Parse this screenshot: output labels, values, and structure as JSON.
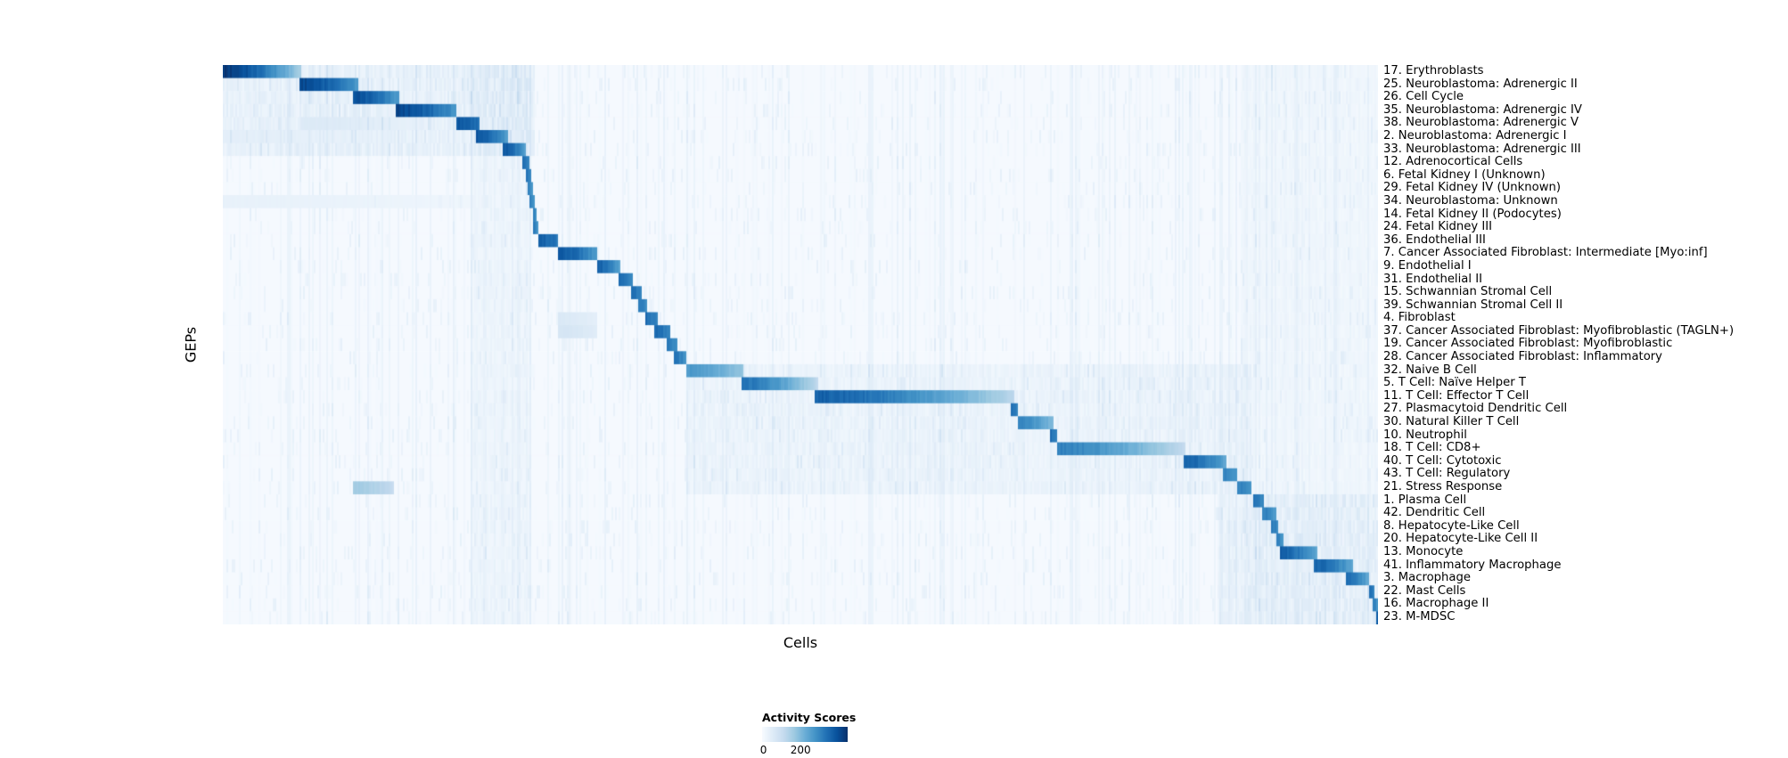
{
  "figure": {
    "y_axis_label": "GEPs",
    "x_axis_label": "Cells"
  },
  "legend": {
    "title": "Activity Scores",
    "min_label": "0",
    "max_label": "200"
  },
  "chart_data": {
    "type": "heatmap",
    "title": "",
    "xlabel": "Cells",
    "ylabel": "GEPs",
    "legend_title": "Activity Scores",
    "score_range": [
      0,
      200
    ],
    "colormap": "Blues",
    "colormap_stops": [
      "#f7fbff",
      "#deebf7",
      "#c6dbef",
      "#9ecae1",
      "#6baed6",
      "#4292c6",
      "#2171b5",
      "#08519c",
      "#08306b"
    ],
    "n_rows": 43,
    "layout": "block-diagonal staircase of GEP activity across ordered cells, blocks as [start_frac, end_frac, peak_intensity]",
    "rows": [
      {
        "label": "17. Erythroblasts",
        "blocks": [
          [
            0.0,
            0.067,
            1.0
          ]
        ]
      },
      {
        "label": "25. Neuroblastoma: Adrenergic II",
        "blocks": [
          [
            0.065,
            0.116,
            0.95
          ]
        ]
      },
      {
        "label": "26. Cell Cycle",
        "blocks": [
          [
            0.112,
            0.152,
            0.92
          ]
        ]
      },
      {
        "label": "35. Neuroblastoma: Adrenergic IV",
        "blocks": [
          [
            0.149,
            0.202,
            0.95
          ]
        ]
      },
      {
        "label": "38. Neuroblastoma: Adrenergic V",
        "blocks": [
          [
            0.067,
            0.2,
            0.14
          ],
          [
            0.202,
            0.222,
            0.9
          ]
        ]
      },
      {
        "label": "2. Neuroblastoma: Adrenergic I",
        "blocks": [
          [
            0.0,
            0.215,
            0.1
          ],
          [
            0.218,
            0.246,
            0.9
          ]
        ]
      },
      {
        "label": "33. Neuroblastoma: Adrenergic III",
        "blocks": [
          [
            0.242,
            0.262,
            0.88
          ]
        ]
      },
      {
        "label": "12. Adrenocortical Cells",
        "blocks": [
          [
            0.259,
            0.265,
            0.8
          ]
        ]
      },
      {
        "label": "6. Fetal Kidney I (Unknown)",
        "blocks": [
          [
            0.261,
            0.266,
            0.78
          ]
        ]
      },
      {
        "label": "29. Fetal Kidney IV (Unknown)",
        "blocks": [
          [
            0.263,
            0.268,
            0.72
          ]
        ]
      },
      {
        "label": "34. Neuroblastoma: Unknown",
        "blocks": [
          [
            0.0,
            0.26,
            0.08
          ],
          [
            0.265,
            0.27,
            0.72
          ]
        ]
      },
      {
        "label": "14. Fetal Kidney II (Podocytes)",
        "blocks": [
          [
            0.267,
            0.271,
            0.72
          ]
        ]
      },
      {
        "label": "24. Fetal Kidney III",
        "blocks": [
          [
            0.268,
            0.273,
            0.72
          ]
        ]
      },
      {
        "label": "36. Endothelial III",
        "blocks": [
          [
            0.272,
            0.29,
            0.86
          ]
        ]
      },
      {
        "label": "7. Cancer Associated Fibroblast: Intermediate [Myo:inf]",
        "blocks": [
          [
            0.289,
            0.324,
            0.9
          ]
        ]
      },
      {
        "label": "9. Endothelial I",
        "blocks": [
          [
            0.323,
            0.344,
            0.85
          ]
        ]
      },
      {
        "label": "31. Endothelial II",
        "blocks": [
          [
            0.342,
            0.354,
            0.8
          ]
        ]
      },
      {
        "label": "15. Schwannian Stromal Cell",
        "blocks": [
          [
            0.352,
            0.362,
            0.8
          ]
        ]
      },
      {
        "label": "39. Schwannian Stromal Cell II",
        "blocks": [
          [
            0.359,
            0.367,
            0.75
          ]
        ]
      },
      {
        "label": "4. Fibroblast",
        "blocks": [
          [
            0.289,
            0.324,
            0.15
          ],
          [
            0.365,
            0.376,
            0.8
          ]
        ]
      },
      {
        "label": "37. Cancer Associated Fibroblast: Myofibroblastic (TAGLN+)",
        "blocks": [
          [
            0.289,
            0.324,
            0.18
          ],
          [
            0.373,
            0.386,
            0.82
          ]
        ]
      },
      {
        "label": "19. Cancer Associated Fibroblast: Myofibroblastic",
        "blocks": [
          [
            0.383,
            0.393,
            0.76
          ]
        ]
      },
      {
        "label": "28. Cancer Associated Fibroblast: Inflammatory",
        "blocks": [
          [
            0.39,
            0.4,
            0.76
          ]
        ]
      },
      {
        "label": "32. Naive B Cell",
        "blocks": [
          [
            0.4,
            0.45,
            0.62
          ]
        ]
      },
      {
        "label": "5. T Cell: Naïve Helper T",
        "blocks": [
          [
            0.448,
            0.514,
            0.78
          ]
        ]
      },
      {
        "label": "11. T Cell: Effector T Cell",
        "blocks": [
          [
            0.512,
            0.684,
            0.85
          ]
        ]
      },
      {
        "label": "27. Plasmacytoid Dendritic Cell",
        "blocks": [
          [
            0.682,
            0.688,
            0.8
          ]
        ]
      },
      {
        "label": "30. Natural Killer T Cell",
        "blocks": [
          [
            0.688,
            0.718,
            0.7
          ]
        ]
      },
      {
        "label": "10. Neutrophil",
        "blocks": [
          [
            0.716,
            0.722,
            0.78
          ]
        ]
      },
      {
        "label": "18. T Cell: CD8+",
        "blocks": [
          [
            0.721,
            0.833,
            0.72
          ]
        ]
      },
      {
        "label": "40. T Cell: Cytotoxic",
        "blocks": [
          [
            0.831,
            0.868,
            0.85
          ]
        ]
      },
      {
        "label": "43. T Cell: Regulatory",
        "blocks": [
          [
            0.865,
            0.878,
            0.72
          ]
        ]
      },
      {
        "label": "21. Stress Response",
        "blocks": [
          [
            0.112,
            0.148,
            0.38
          ],
          [
            0.878,
            0.89,
            0.72
          ]
        ]
      },
      {
        "label": "1. Plasma Cell",
        "blocks": [
          [
            0.891,
            0.9,
            0.8
          ]
        ]
      },
      {
        "label": "42. Dendritic Cell",
        "blocks": [
          [
            0.899,
            0.911,
            0.72
          ]
        ]
      },
      {
        "label": "8. Hepatocyte-Like Cell",
        "blocks": [
          [
            0.907,
            0.913,
            0.75
          ]
        ]
      },
      {
        "label": "20. Hepatocyte-Like Cell II",
        "blocks": [
          [
            0.911,
            0.917,
            0.72
          ]
        ]
      },
      {
        "label": "13. Monocyte",
        "blocks": [
          [
            0.915,
            0.947,
            0.85
          ]
        ]
      },
      {
        "label": "41. Inflammatory Macrophage",
        "blocks": [
          [
            0.943,
            0.977,
            0.85
          ]
        ]
      },
      {
        "label": "3. Macrophage",
        "blocks": [
          [
            0.972,
            0.992,
            0.8
          ]
        ]
      },
      {
        "label": "22. Mast Cells",
        "blocks": [
          [
            0.992,
            0.996,
            0.8
          ]
        ]
      },
      {
        "label": "16. Macrophage II",
        "blocks": [
          [
            0.994,
            0.999,
            0.75
          ]
        ]
      },
      {
        "label": "23. M-MDSC",
        "blocks": [
          [
            0.997,
            1.0,
            0.92
          ]
        ]
      }
    ],
    "background_bands": [
      {
        "rows": [
          0,
          6
        ],
        "range": [
          0.0,
          0.27
        ],
        "intensity": 0.06
      },
      {
        "rows": [
          0,
          42
        ],
        "range": [
          0.213,
          0.266
        ],
        "intensity": 0.035
      },
      {
        "rows": [
          23,
          32
        ],
        "range": [
          0.4,
          0.89
        ],
        "intensity": 0.045
      },
      {
        "rows": [
          33,
          42
        ],
        "range": [
          0.86,
          1.0
        ],
        "intensity": 0.05
      },
      {
        "rows": [
          0,
          42
        ],
        "range": [
          0.88,
          1.0
        ],
        "intensity": 0.025
      }
    ]
  }
}
